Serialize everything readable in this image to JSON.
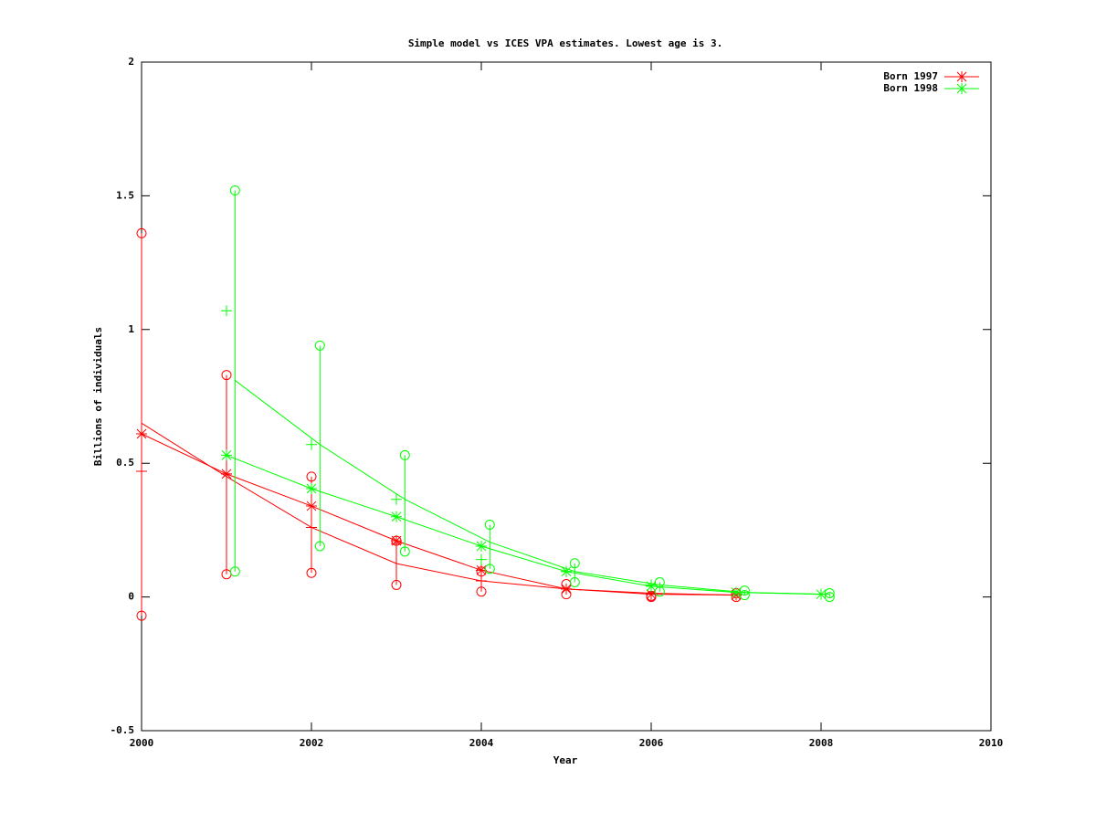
{
  "chart_data": {
    "type": "line",
    "title": "Simple model vs ICES VPA estimates. Lowest age is 3.",
    "xlabel": "Year",
    "ylabel": "Billions of individuals",
    "xlim": [
      2000,
      2010
    ],
    "xticks": [
      2000,
      2002,
      2004,
      2006,
      2008,
      2010
    ],
    "ylim": [
      -0.5,
      2
    ],
    "yticks": [
      -0.5,
      0,
      0.5,
      1,
      1.5,
      2
    ],
    "grid": false,
    "legend": "top-right",
    "series": [
      {
        "name": "Born 1997",
        "color": "#ff0000",
        "x": [
          2000,
          2001,
          2002,
          2003,
          2004,
          2005,
          2006,
          2007
        ],
        "values": [
          0.61,
          0.46,
          0.34,
          0.21,
          0.1,
          0.03,
          0.01,
          0.007
        ],
        "bar_x": [
          2000,
          2001,
          2002,
          2003,
          2004,
          2005,
          2006,
          2007
        ],
        "low": [
          -0.07,
          0.085,
          0.09,
          0.045,
          0.02,
          0.01,
          0,
          0
        ],
        "high": [
          1.36,
          0.83,
          0.45,
          0.21,
          0.095,
          0.048,
          0.004,
          0.014
        ],
        "model": [
          0.65,
          0.45,
          0.26,
          0.125,
          0.06,
          0.03,
          0.014,
          0.007
        ],
        "points": [
          0.47,
          0.46,
          0.26,
          0.2,
          0.06,
          0.03,
          0.014,
          0.007
        ]
      },
      {
        "name": "Born 1998",
        "color": "#00ff00",
        "x": [
          2001,
          2002,
          2003,
          2004,
          2005,
          2006,
          2007,
          2008
        ],
        "values": [
          0.53,
          0.405,
          0.3,
          0.19,
          0.095,
          0.04,
          0.017,
          0.01
        ],
        "bar_x": [
          2001.1,
          2002.1,
          2003.1,
          2004.1,
          2005.1,
          2006.1,
          2007.1,
          2008.1
        ],
        "low": [
          0.095,
          0.19,
          0.17,
          0.105,
          0.055,
          0.02,
          0.007,
          0
        ],
        "high": [
          1.52,
          0.94,
          0.53,
          0.27,
          0.126,
          0.055,
          0.024,
          0.014
        ],
        "model": [
          0.81,
          0.57,
          0.365,
          0.205,
          0.095,
          0.045,
          0.017,
          0.01
        ],
        "points": [
          1.07,
          0.57,
          0.365,
          0.14,
          0.095,
          0.045,
          0.017,
          0.01
        ]
      }
    ]
  }
}
